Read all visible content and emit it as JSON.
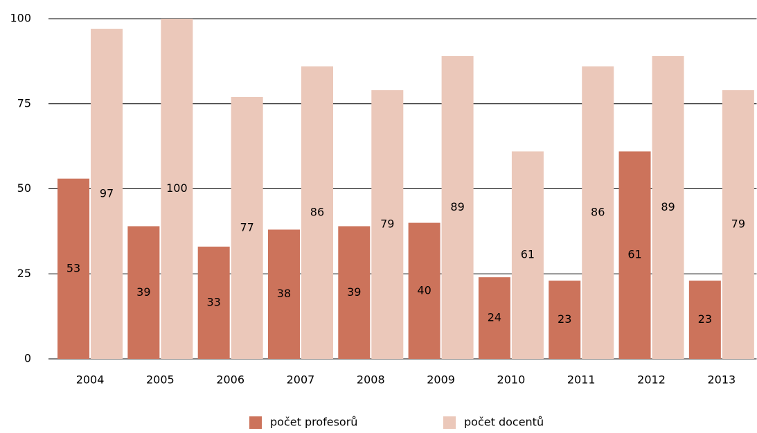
{
  "chart_data": {
    "type": "bar",
    "categories": [
      "2004",
      "2005",
      "2006",
      "2007",
      "2008",
      "2009",
      "2010",
      "2011",
      "2012",
      "2013"
    ],
    "series": [
      {
        "name": "počet profesorů",
        "color": "#cc735b",
        "values": [
          53,
          39,
          33,
          38,
          39,
          40,
          24,
          23,
          61,
          23
        ]
      },
      {
        "name": "počet docentů",
        "color": "#ebc8ba",
        "values": [
          97,
          100,
          77,
          86,
          79,
          89,
          61,
          86,
          89,
          79
        ]
      }
    ],
    "ylim": [
      0,
      100
    ],
    "yticks": [
      0,
      25,
      50,
      75,
      100
    ],
    "grid": true,
    "legend": "bottom"
  }
}
